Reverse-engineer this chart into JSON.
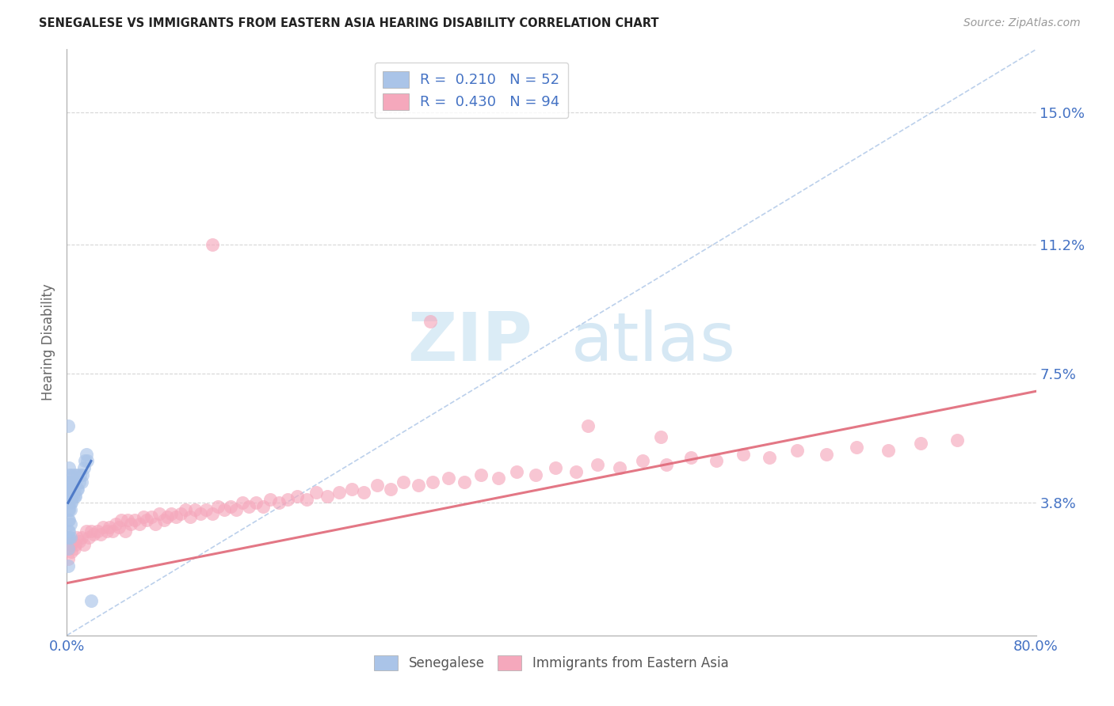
{
  "title": "SENEGALESE VS IMMIGRANTS FROM EASTERN ASIA HEARING DISABILITY CORRELATION CHART",
  "source": "Source: ZipAtlas.com",
  "ylabel": "Hearing Disability",
  "xlim": [
    0,
    0.8
  ],
  "ylim": [
    0,
    0.168
  ],
  "yticks": [
    0.038,
    0.075,
    0.112,
    0.15
  ],
  "ytick_labels": [
    "3.8%",
    "7.5%",
    "11.2%",
    "15.0%"
  ],
  "blue_scatter_color": "#aac4e8",
  "pink_scatter_color": "#f5a8bc",
  "blue_trend_color": "#4472c4",
  "pink_trend_color": "#e06878",
  "diag_color": "#b0c8e8",
  "background_color": "#ffffff",
  "grid_color": "#cccccc",
  "text_color": "#4472c4",
  "axis_color": "#aaaaaa",
  "watermark": "ZIPatlas",
  "senegalese_x": [
    0.001,
    0.001,
    0.001,
    0.001,
    0.001,
    0.001,
    0.001,
    0.001,
    0.001,
    0.001,
    0.002,
    0.002,
    0.002,
    0.002,
    0.002,
    0.002,
    0.002,
    0.002,
    0.002,
    0.002,
    0.003,
    0.003,
    0.003,
    0.003,
    0.003,
    0.003,
    0.003,
    0.004,
    0.004,
    0.004,
    0.004,
    0.005,
    0.005,
    0.005,
    0.006,
    0.006,
    0.006,
    0.007,
    0.007,
    0.008,
    0.008,
    0.009,
    0.01,
    0.011,
    0.012,
    0.013,
    0.014,
    0.015,
    0.016,
    0.017,
    0.001,
    0.02
  ],
  "senegalese_y": [
    0.03,
    0.033,
    0.036,
    0.038,
    0.04,
    0.042,
    0.044,
    0.028,
    0.025,
    0.02,
    0.033,
    0.036,
    0.038,
    0.04,
    0.042,
    0.044,
    0.046,
    0.048,
    0.03,
    0.028,
    0.036,
    0.038,
    0.04,
    0.042,
    0.044,
    0.032,
    0.028,
    0.038,
    0.04,
    0.042,
    0.046,
    0.04,
    0.042,
    0.044,
    0.04,
    0.042,
    0.046,
    0.04,
    0.044,
    0.042,
    0.046,
    0.042,
    0.044,
    0.046,
    0.044,
    0.046,
    0.048,
    0.05,
    0.052,
    0.05,
    0.06,
    0.01
  ],
  "eastern_asia_x": [
    0.001,
    0.002,
    0.003,
    0.004,
    0.005,
    0.006,
    0.007,
    0.008,
    0.01,
    0.012,
    0.014,
    0.016,
    0.018,
    0.02,
    0.022,
    0.025,
    0.028,
    0.03,
    0.033,
    0.035,
    0.038,
    0.04,
    0.043,
    0.045,
    0.048,
    0.05,
    0.053,
    0.056,
    0.06,
    0.063,
    0.066,
    0.07,
    0.073,
    0.076,
    0.08,
    0.083,
    0.086,
    0.09,
    0.094,
    0.098,
    0.102,
    0.106,
    0.11,
    0.115,
    0.12,
    0.125,
    0.13,
    0.135,
    0.14,
    0.145,
    0.15,
    0.156,
    0.162,
    0.168,
    0.175,
    0.182,
    0.19,
    0.198,
    0.206,
    0.215,
    0.225,
    0.235,
    0.245,
    0.256,
    0.267,
    0.278,
    0.29,
    0.302,
    0.315,
    0.328,
    0.342,
    0.356,
    0.371,
    0.387,
    0.403,
    0.42,
    0.438,
    0.456,
    0.475,
    0.495,
    0.515,
    0.536,
    0.558,
    0.58,
    0.603,
    0.627,
    0.652,
    0.678,
    0.705,
    0.735,
    0.43,
    0.49,
    0.3,
    0.12
  ],
  "eastern_asia_y": [
    0.022,
    0.025,
    0.026,
    0.024,
    0.027,
    0.025,
    0.026,
    0.028,
    0.027,
    0.028,
    0.026,
    0.03,
    0.028,
    0.03,
    0.029,
    0.03,
    0.029,
    0.031,
    0.03,
    0.031,
    0.03,
    0.032,
    0.031,
    0.033,
    0.03,
    0.033,
    0.032,
    0.033,
    0.032,
    0.034,
    0.033,
    0.034,
    0.032,
    0.035,
    0.033,
    0.034,
    0.035,
    0.034,
    0.035,
    0.036,
    0.034,
    0.036,
    0.035,
    0.036,
    0.035,
    0.037,
    0.036,
    0.037,
    0.036,
    0.038,
    0.037,
    0.038,
    0.037,
    0.039,
    0.038,
    0.039,
    0.04,
    0.039,
    0.041,
    0.04,
    0.041,
    0.042,
    0.041,
    0.043,
    0.042,
    0.044,
    0.043,
    0.044,
    0.045,
    0.044,
    0.046,
    0.045,
    0.047,
    0.046,
    0.048,
    0.047,
    0.049,
    0.048,
    0.05,
    0.049,
    0.051,
    0.05,
    0.052,
    0.051,
    0.053,
    0.052,
    0.054,
    0.053,
    0.055,
    0.056,
    0.06,
    0.057,
    0.09,
    0.112
  ],
  "diag_line_x": [
    0.0,
    0.8
  ],
  "diag_line_y": [
    0.0,
    0.168
  ],
  "blue_trend_x": [
    0.001,
    0.02
  ],
  "blue_trend_y": [
    0.038,
    0.05
  ],
  "pink_trend_x": [
    0.0,
    0.8
  ],
  "pink_trend_y": [
    0.015,
    0.07
  ]
}
